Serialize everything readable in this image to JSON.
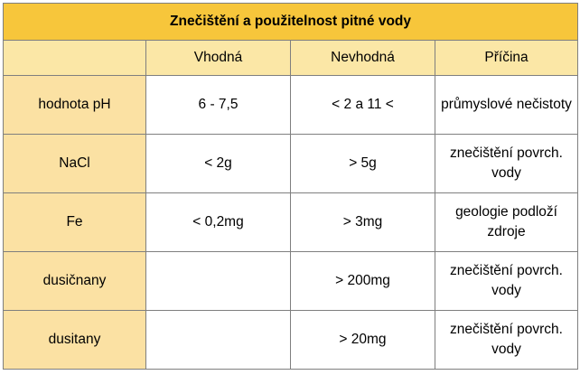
{
  "title": "Znečištění a použitelnost pitné vody",
  "columns": [
    "",
    "Vhodná",
    "Nevhodná",
    "Příčina"
  ],
  "rows": [
    {
      "label": "hodnota pH",
      "suitable": "6 - 7,5",
      "unsuitable": "< 2 a 11 <",
      "cause": "průmyslové nečistoty"
    },
    {
      "label": "NaCl",
      "suitable": "< 2g",
      "unsuitable": "> 5g",
      "cause": "znečištění povrch. vody"
    },
    {
      "label": "Fe",
      "suitable": "< 0,2mg",
      "unsuitable": "> 3mg",
      "cause": "geologie podloží zdroje"
    },
    {
      "label": "dusičnany",
      "suitable": "",
      "unsuitable": "> 200mg",
      "cause": "znečištění povrch. vody"
    },
    {
      "label": "dusitany",
      "suitable": "",
      "unsuitable": "> 20mg",
      "cause": "znečištění povrch. vody"
    }
  ],
  "colors": {
    "title_bg": "#f7c63b",
    "header_bg": "#fbe7a6",
    "label_bg": "#fbe1a3",
    "border": "#7f7f7f"
  }
}
